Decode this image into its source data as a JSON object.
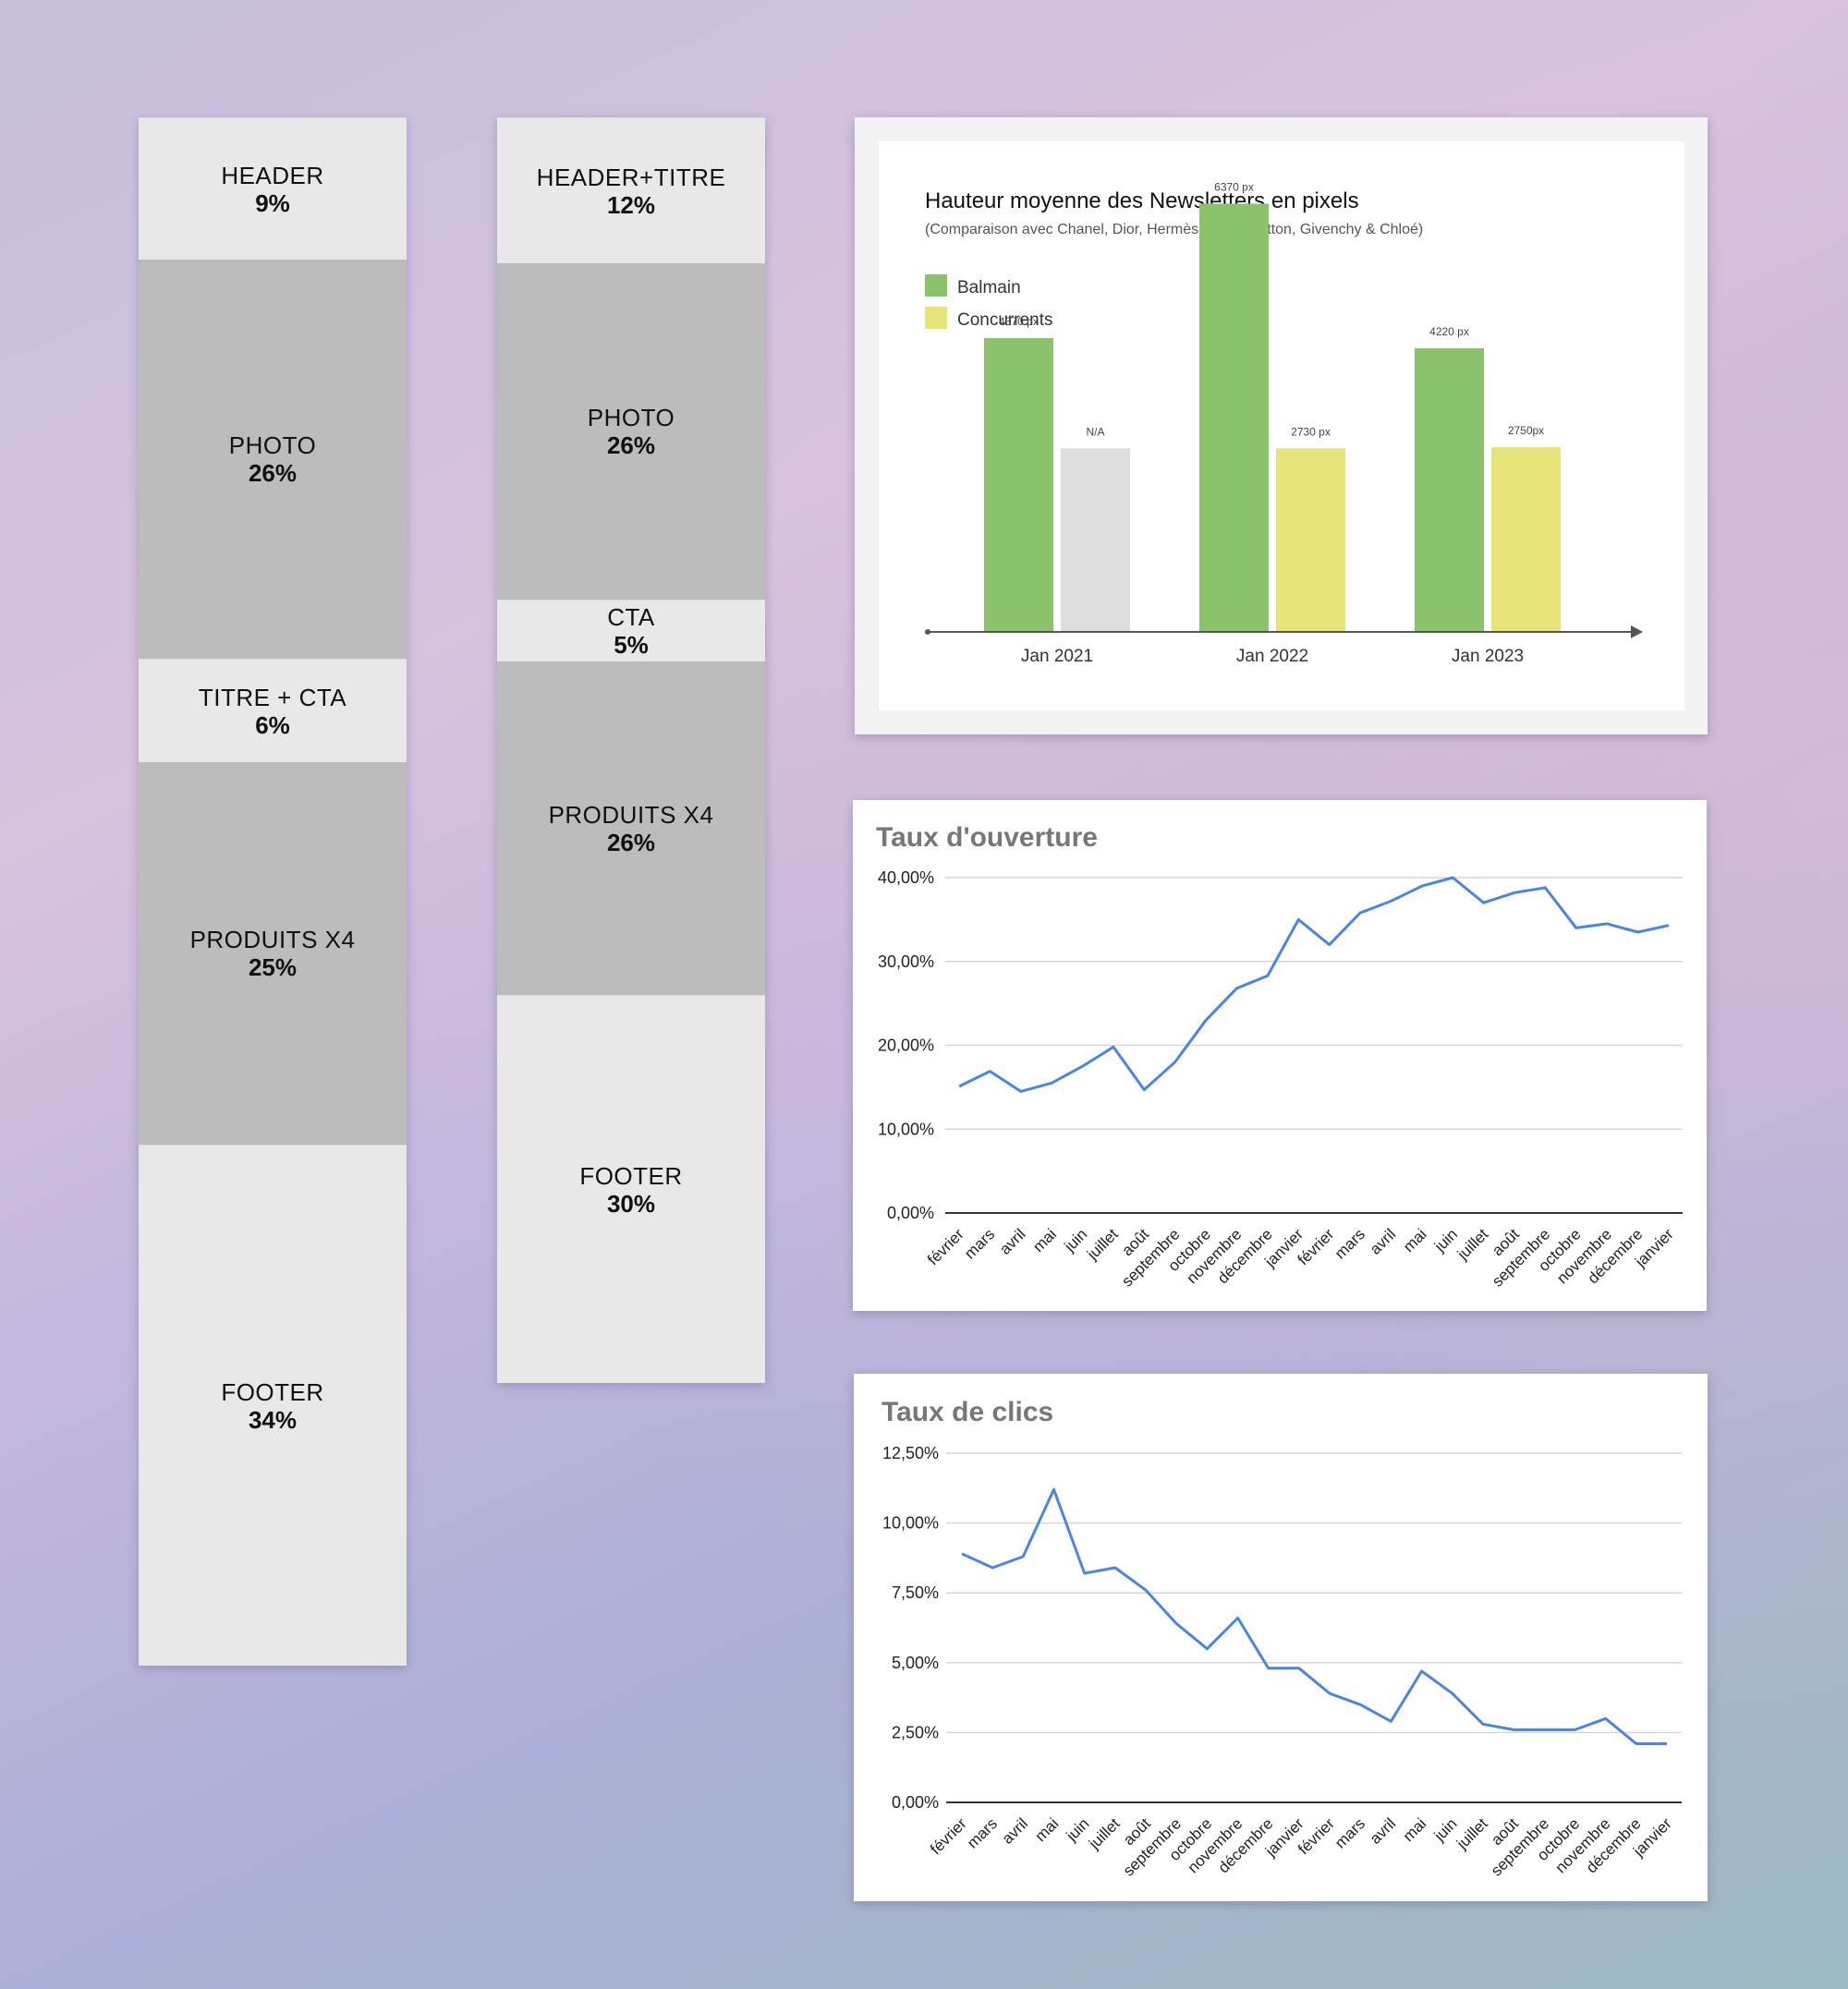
{
  "layout_a": {
    "segments": [
      {
        "label": "HEADER",
        "pct": "9%",
        "tone": "light"
      },
      {
        "label": "PHOTO",
        "pct": "26%",
        "tone": "dark"
      },
      {
        "label": "TITRE + CTA",
        "pct": "6%",
        "tone": "light"
      },
      {
        "label": "PRODUITS X4",
        "pct": "25%",
        "tone": "dark"
      },
      {
        "label": "FOOTER",
        "pct": "34%",
        "tone": "light"
      }
    ]
  },
  "layout_b": {
    "segments": [
      {
        "label": "HEADER+TITRE",
        "pct": "12%",
        "tone": "light"
      },
      {
        "label": "PHOTO",
        "pct": "26%",
        "tone": "dark"
      },
      {
        "label": "CTA",
        "pct": "5%",
        "tone": "light"
      },
      {
        "label": "PRODUITS X4",
        "pct": "26%",
        "tone": "dark"
      },
      {
        "label": "FOOTER",
        "pct": "30%",
        "tone": "light"
      }
    ]
  },
  "colors": {
    "balmain": "#8cc26b",
    "concurrents": "#e6e57c",
    "not_available": "#dddddd",
    "line": "#4a86e0",
    "grid": "#d6d6d6",
    "axis": "#555555",
    "card_title": "#777777"
  },
  "chart_data": [
    {
      "type": "bar",
      "title": "Hauteur moyenne des Newsletters en pixels",
      "subtitle": "(Comparaison avec Chanel, Dior, Hermès, Louis Vuitton, Givenchy & Chloé)",
      "legend_position": "top-left",
      "categories": [
        "Jan 2021",
        "Jan 2022",
        "Jan 2023"
      ],
      "series": [
        {
          "name": "Balmain",
          "values": [
            4370,
            6370,
            4220
          ],
          "labels": [
            "4370 px",
            "6370 px",
            "4220 px"
          ]
        },
        {
          "name": "Concurrents",
          "values": [
            null,
            2730,
            2750
          ],
          "labels": [
            "N/A",
            "2730 px",
            "2750px"
          ]
        }
      ],
      "na_placeholder_value": 2730,
      "ylim": [
        0,
        7000
      ],
      "grid": false
    },
    {
      "type": "line",
      "title": "Taux d'ouverture",
      "x": [
        "février",
        "mars",
        "avril",
        "mai",
        "juin",
        "juillet",
        "août",
        "septembre",
        "octobre",
        "novembre",
        "décembre",
        "janvier",
        "février",
        "mars",
        "avril",
        "mai",
        "juin",
        "juillet",
        "août",
        "septembre",
        "octobre",
        "novembre",
        "décembre",
        "janvier"
      ],
      "values": [
        15.1,
        16.9,
        14.5,
        15.5,
        17.5,
        19.8,
        14.7,
        18.0,
        23.0,
        26.8,
        28.3,
        35.0,
        32.0,
        35.8,
        37.2,
        39.0,
        40.0,
        37.0,
        38.2,
        38.8,
        34.0,
        34.5,
        33.5,
        34.3
      ],
      "yticks": [
        "0,00%",
        "10,00%",
        "20,00%",
        "30,00%",
        "40,00%"
      ],
      "ylim": [
        0,
        40
      ],
      "grid": true
    },
    {
      "type": "line",
      "title": "Taux de clics",
      "x": [
        "février",
        "mars",
        "avril",
        "mai",
        "juin",
        "juillet",
        "août",
        "septembre",
        "octobre",
        "novembre",
        "décembre",
        "janvier",
        "février",
        "mars",
        "avril",
        "mai",
        "juin",
        "juillet",
        "août",
        "septembre",
        "octobre",
        "novembre",
        "décembre",
        "janvier"
      ],
      "values": [
        8.9,
        8.4,
        8.8,
        11.2,
        8.2,
        8.4,
        7.6,
        6.4,
        5.5,
        6.6,
        4.8,
        4.8,
        3.9,
        3.5,
        2.9,
        4.7,
        3.9,
        2.8,
        2.6,
        2.6,
        2.6,
        3.0,
        2.1,
        2.1
      ],
      "yticks": [
        "0,00%",
        "2,50%",
        "5,00%",
        "7,50%",
        "10,00%",
        "12,50%"
      ],
      "ylim": [
        0,
        12.5
      ],
      "grid": true
    }
  ]
}
